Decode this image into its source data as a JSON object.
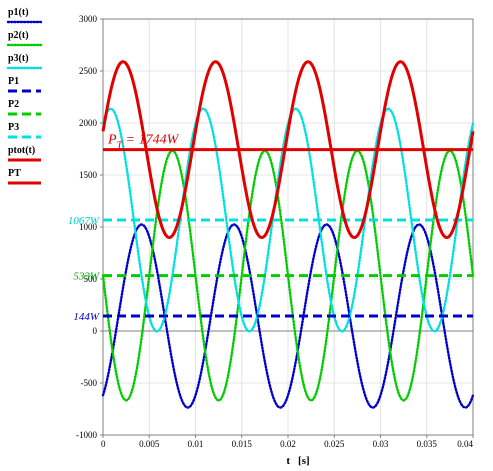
{
  "chart_data": {
    "type": "line",
    "title": "",
    "xlabel": "t",
    "xunit": "[s]",
    "xlim": [
      0,
      0.04
    ],
    "ylim": [
      -1000,
      3000
    ],
    "x_ticks": [
      "0",
      "0.005",
      "0.01",
      "0.015",
      "0.02",
      "0.025",
      "0.03",
      "0.035",
      "0.04"
    ],
    "y_ticks": [
      "3000",
      "2500",
      "2000",
      "1500",
      "1000",
      "500",
      "0",
      "-500",
      "-1000"
    ],
    "grid": true,
    "legend_placement": "left",
    "series": [
      {
        "name": "p1(t)",
        "style": "dotted",
        "color": "#0000cc",
        "kind": "sine",
        "mean": 144,
        "amplitude": 880,
        "frequency_hz": 100,
        "phase_deg": -60
      },
      {
        "name": "p2(t)",
        "style": "dotted",
        "color": "#00cc00",
        "kind": "sine",
        "mean": 533,
        "amplitude": 1200,
        "frequency_hz": 100,
        "phase_deg": 180
      },
      {
        "name": "p3(t)",
        "style": "dotted",
        "color": "#00e0e0",
        "kind": "sine",
        "mean": 1067,
        "amplitude": 1070,
        "frequency_hz": 100,
        "phase_deg": 60
      },
      {
        "name": "P1",
        "style": "dashed",
        "color": "#0000cc",
        "kind": "constant",
        "value": 144
      },
      {
        "name": "P2",
        "style": "dashed",
        "color": "#00cc00",
        "kind": "constant",
        "value": 533
      },
      {
        "name": "P3",
        "style": "dashed",
        "color": "#00e0e0",
        "kind": "constant",
        "value": 1067
      },
      {
        "name": "ptot(t)",
        "style": "solid",
        "color": "#e00000",
        "kind": "sine",
        "mean": 1744,
        "amplitude": 845,
        "frequency_hz": 100,
        "phase_deg": 12
      },
      {
        "name": "PT",
        "style": "solid",
        "color": "#e00000",
        "kind": "constant",
        "value": 1744
      }
    ],
    "annotations": [
      {
        "text": "144W",
        "y": 144,
        "color": "#0000cc"
      },
      {
        "text": "533W",
        "y": 533,
        "color": "#00aa00"
      },
      {
        "text": "1067W",
        "y": 1067,
        "color": "#00cccc"
      }
    ],
    "pt_annotation": {
      "symbol": "P",
      "subscript": "T",
      "text": " =   1744W",
      "y": 1744
    }
  }
}
